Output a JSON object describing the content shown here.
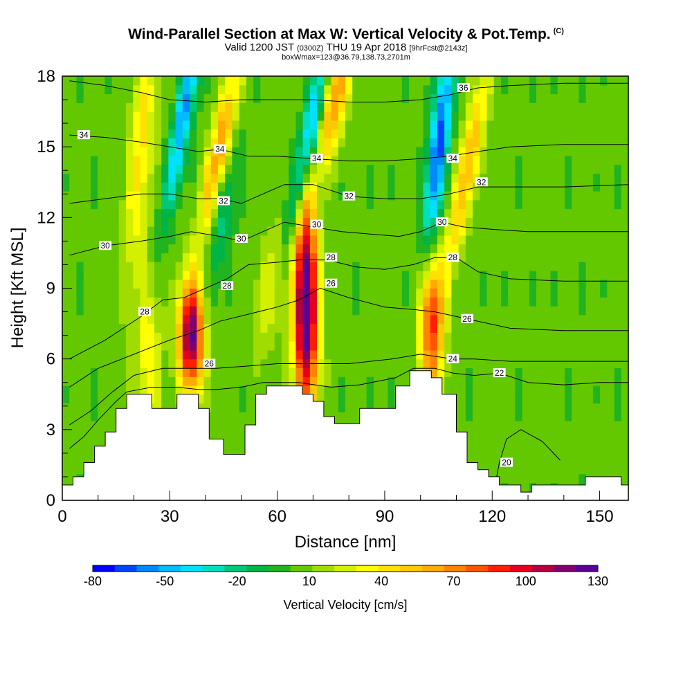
{
  "title": {
    "main": "Wind-Parallel Section at Max W: Vertical Velocity & Pot.Temp.",
    "copyright": "(C)",
    "valid_prefix": "Valid 1200 JST",
    "valid_utc": "(0300Z)",
    "valid_date": "THU 19 Apr 2018",
    "forecast": "[9hrFcst@2143z]",
    "box_info": "boxWmax=123@36.79,138.73,2701m"
  },
  "chart_data": {
    "type": "heatmap",
    "xlabel": "Distance [nm]",
    "ylabel": "Height [Kft MSL]",
    "xlim": [
      0,
      158
    ],
    "ylim": [
      0,
      18
    ],
    "x_ticks": [
      0,
      30,
      60,
      90,
      120,
      150
    ],
    "y_ticks": [
      0,
      3,
      6,
      9,
      12,
      15,
      18
    ],
    "colorbar": {
      "title": "Vertical Velocity [cm/s]",
      "labels": [
        -80,
        -50,
        -20,
        10,
        40,
        70,
        100,
        130
      ],
      "levels": [
        -80,
        -70,
        -60,
        -50,
        -40,
        -30,
        -20,
        -10,
        0,
        10,
        20,
        30,
        40,
        50,
        60,
        70,
        80,
        90,
        100,
        110,
        120,
        130
      ],
      "colors": [
        "#0000ff",
        "#0044ff",
        "#0088ff",
        "#00bbff",
        "#00e0ff",
        "#00e0c0",
        "#00c878",
        "#00b446",
        "#22b41e",
        "#64c800",
        "#a0dc00",
        "#d2f000",
        "#ffff00",
        "#ffe100",
        "#ffc800",
        "#ffaa00",
        "#ff8200",
        "#ff5500",
        "#ff1e00",
        "#e6001e",
        "#b4003c",
        "#82006e",
        "#5a0096"
      ]
    },
    "terrain": [
      [
        0,
        0.65
      ],
      [
        3,
        0.65
      ],
      [
        3,
        1
      ],
      [
        6,
        1
      ],
      [
        6,
        1.6
      ],
      [
        9,
        1.6
      ],
      [
        9,
        2.3
      ],
      [
        12,
        2.3
      ],
      [
        12,
        2.9
      ],
      [
        15,
        2.9
      ],
      [
        15,
        3.9
      ],
      [
        18,
        3.9
      ],
      [
        18,
        4.5
      ],
      [
        25,
        4.5
      ],
      [
        25,
        3.9
      ],
      [
        32,
        3.9
      ],
      [
        32,
        4.5
      ],
      [
        38,
        4.5
      ],
      [
        38,
        3.9
      ],
      [
        41,
        3.9
      ],
      [
        41,
        2.6
      ],
      [
        45,
        2.6
      ],
      [
        45,
        1.95
      ],
      [
        51,
        1.95
      ],
      [
        51,
        3.2
      ],
      [
        54,
        3.2
      ],
      [
        54,
        4.5
      ],
      [
        57,
        4.5
      ],
      [
        57,
        4.85
      ],
      [
        67,
        4.85
      ],
      [
        67,
        4.5
      ],
      [
        70,
        4.5
      ],
      [
        70,
        4.2
      ],
      [
        73,
        4.2
      ],
      [
        73,
        3.55
      ],
      [
        76,
        3.55
      ],
      [
        76,
        3.25
      ],
      [
        83,
        3.25
      ],
      [
        83,
        3.9
      ],
      [
        93,
        3.9
      ],
      [
        93,
        4.85
      ],
      [
        97,
        4.85
      ],
      [
        97,
        5.5
      ],
      [
        103,
        5.5
      ],
      [
        103,
        5.2
      ],
      [
        106,
        5.2
      ],
      [
        106,
        4.5
      ],
      [
        110,
        4.5
      ],
      [
        110,
        2.9
      ],
      [
        113,
        2.9
      ],
      [
        113,
        1.6
      ],
      [
        116,
        1.6
      ],
      [
        116,
        1.3
      ],
      [
        119,
        1.3
      ],
      [
        119,
        1
      ],
      [
        122,
        1
      ],
      [
        122,
        0.65
      ],
      [
        128,
        0.65
      ],
      [
        128,
        0.35
      ],
      [
        131,
        0.35
      ],
      [
        131,
        0.65
      ],
      [
        146,
        0.65
      ],
      [
        146,
        1
      ],
      [
        156,
        1
      ],
      [
        156,
        0.65
      ],
      [
        158,
        0.65
      ]
    ],
    "vertical_velocity_features": [
      {
        "x": 36,
        "y": 7,
        "w": 130,
        "wx": 2.5,
        "wy": 1.7,
        "tilt": 0.03
      },
      {
        "x": 44,
        "y": 15,
        "w": 70,
        "wx": 2,
        "wy": 2.5,
        "tilt": 1.3
      },
      {
        "x": 34,
        "y": 16.5,
        "w": -65,
        "wx": 1.8,
        "wy": 3,
        "tilt": 1.1
      },
      {
        "x": 24,
        "y": 6,
        "w": 35,
        "wx": 2.5,
        "wy": 2.5,
        "tilt": 0
      },
      {
        "x": 68,
        "y": 9,
        "w": 130,
        "wx": 2.2,
        "wy": 3,
        "tilt": 0
      },
      {
        "x": 68,
        "y": 6,
        "w": 40,
        "wx": 2.8,
        "wy": 2.5,
        "tilt": 0
      },
      {
        "x": 76,
        "y": 17,
        "w": 70,
        "wx": 2.5,
        "wy": 2,
        "tilt": 1.2
      },
      {
        "x": 69,
        "y": 15.5,
        "w": -65,
        "wx": 2,
        "wy": 3,
        "tilt": 1.25
      },
      {
        "x": 103,
        "y": 7.5,
        "w": 90,
        "wx": 2.5,
        "wy": 2.2,
        "tilt": 0
      },
      {
        "x": 113,
        "y": 14,
        "w": 60,
        "wx": 2,
        "wy": 3,
        "tilt": 1.2
      },
      {
        "x": 105,
        "y": 15,
        "w": -80,
        "wx": 1.9,
        "wy": 3.5,
        "tilt": 0.7
      },
      {
        "x": 22,
        "y": 15,
        "w": 40,
        "wx": 2.5,
        "wy": 4,
        "tilt": 0.5
      },
      {
        "x": 45,
        "y": 12,
        "w": -25,
        "wx": 2,
        "wy": 2.5,
        "tilt": 0.9
      },
      {
        "x": 58,
        "y": 9,
        "w": 25,
        "wx": 3,
        "wy": 2,
        "tilt": 0.7
      }
    ],
    "theta_contours": [
      {
        "level": 20,
        "label": true,
        "lx": 124,
        "ly": 1.6,
        "pts": [
          [
            120,
            0.2
          ],
          [
            121,
            0.8
          ],
          [
            122,
            1.6
          ],
          [
            124,
            2.6
          ],
          [
            128,
            3.0
          ],
          [
            134,
            2.5
          ],
          [
            139,
            1.7
          ]
        ]
      },
      {
        "level": 22,
        "label": true,
        "lx": 122,
        "ly": 5.4,
        "pts": [
          [
            2,
            2.2
          ],
          [
            6,
            2.7
          ],
          [
            10,
            3.4
          ],
          [
            15,
            4.2
          ],
          [
            18,
            4.6
          ],
          [
            25,
            4.8
          ],
          [
            32,
            4.8
          ],
          [
            38,
            4.7
          ],
          [
            43,
            4.7
          ],
          [
            50,
            4.8
          ],
          [
            56,
            5.0
          ],
          [
            66,
            5.0
          ],
          [
            75,
            4.8
          ],
          [
            83,
            4.9
          ],
          [
            93,
            5.2
          ],
          [
            98,
            5.6
          ],
          [
            104,
            5.6
          ],
          [
            109,
            5.4
          ],
          [
            115,
            5.3
          ],
          [
            122,
            5.4
          ],
          [
            130,
            5.0
          ],
          [
            140,
            4.9
          ],
          [
            150,
            5.0
          ],
          [
            158,
            5.0
          ]
        ]
      },
      {
        "level": 24,
        "label": true,
        "lx": 109,
        "ly": 6.0,
        "pts": [
          [
            2,
            3.2
          ],
          [
            8,
            3.8
          ],
          [
            14,
            4.6
          ],
          [
            20,
            5.3
          ],
          [
            28,
            5.6
          ],
          [
            36,
            5.6
          ],
          [
            43,
            5.6
          ],
          [
            52,
            5.7
          ],
          [
            60,
            5.8
          ],
          [
            70,
            5.8
          ],
          [
            80,
            5.8
          ],
          [
            92,
            6.0
          ],
          [
            100,
            6.2
          ],
          [
            109,
            6.0
          ],
          [
            115,
            6.0
          ],
          [
            125,
            5.9
          ],
          [
            140,
            5.9
          ],
          [
            158,
            5.9
          ]
        ]
      },
      {
        "level": 26,
        "label": true,
        "lx": 113,
        "ly": 7.7,
        "pts": [
          [
            2,
            4.8
          ],
          [
            10,
            5.6
          ],
          [
            20,
            6.2
          ],
          [
            30,
            6.8
          ],
          [
            38,
            7.2
          ],
          [
            44,
            7.6
          ],
          [
            52,
            7.9
          ],
          [
            60,
            8.2
          ],
          [
            66,
            8.5
          ],
          [
            72,
            9.0
          ],
          [
            80,
            8.6
          ],
          [
            90,
            8.2
          ],
          [
            98,
            8.1
          ],
          [
            104,
            8.0
          ],
          [
            110,
            7.8
          ],
          [
            116,
            7.6
          ],
          [
            125,
            7.3
          ],
          [
            140,
            7.2
          ],
          [
            158,
            7.2
          ]
        ]
      },
      {
        "level": 28,
        "label": true,
        "lx": 109,
        "ly": 10.3,
        "pts": [
          [
            2,
            6.0
          ],
          [
            12,
            6.8
          ],
          [
            22,
            7.8
          ],
          [
            28,
            8.5
          ],
          [
            34,
            8.6
          ],
          [
            40,
            9.0
          ],
          [
            46,
            9.4
          ],
          [
            52,
            10.0
          ],
          [
            60,
            10.1
          ],
          [
            66,
            10.2
          ],
          [
            74,
            10.2
          ],
          [
            82,
            9.9
          ],
          [
            90,
            9.8
          ],
          [
            98,
            10.0
          ],
          [
            104,
            10.3
          ],
          [
            110,
            10.3
          ],
          [
            116,
            9.7
          ],
          [
            125,
            9.4
          ],
          [
            140,
            9.3
          ],
          [
            158,
            9.3
          ]
        ]
      },
      {
        "level": 30,
        "label": true,
        "lx": 12,
        "ly": 10.8,
        "pts": [
          [
            2,
            10.4
          ],
          [
            12,
            10.8
          ],
          [
            22,
            11.0
          ],
          [
            30,
            11.2
          ],
          [
            36,
            11.4
          ],
          [
            44,
            11.2
          ],
          [
            50,
            11.0
          ],
          [
            56,
            11.4
          ],
          [
            62,
            11.8
          ],
          [
            70,
            11.6
          ],
          [
            78,
            11.4
          ],
          [
            86,
            11.3
          ],
          [
            94,
            11.2
          ],
          [
            100,
            11.4
          ],
          [
            106,
            11.8
          ],
          [
            112,
            11.6
          ],
          [
            120,
            11.5
          ],
          [
            130,
            11.4
          ],
          [
            145,
            11.4
          ],
          [
            158,
            11.4
          ]
        ]
      },
      {
        "level": 32,
        "label": true,
        "lx": 80,
        "ly": 12.9,
        "pts": [
          [
            2,
            12.6
          ],
          [
            12,
            12.8
          ],
          [
            22,
            13.0
          ],
          [
            30,
            13.0
          ],
          [
            38,
            12.8
          ],
          [
            44,
            12.8
          ],
          [
            50,
            12.6
          ],
          [
            56,
            13.0
          ],
          [
            62,
            13.4
          ],
          [
            70,
            13.4
          ],
          [
            80,
            12.9
          ],
          [
            90,
            12.8
          ],
          [
            100,
            12.8
          ],
          [
            108,
            13.0
          ],
          [
            116,
            13.3
          ],
          [
            125,
            13.3
          ],
          [
            140,
            13.3
          ],
          [
            158,
            13.4
          ]
        ]
      },
      {
        "level": 34,
        "label": true,
        "lx": 44,
        "ly": 14.9,
        "pts": [
          [
            2,
            15.5
          ],
          [
            12,
            15.4
          ],
          [
            22,
            15.2
          ],
          [
            30,
            15.0
          ],
          [
            38,
            14.8
          ],
          [
            44,
            14.9
          ],
          [
            52,
            14.6
          ],
          [
            60,
            14.6
          ],
          [
            70,
            14.5
          ],
          [
            80,
            14.4
          ],
          [
            90,
            14.4
          ],
          [
            100,
            14.5
          ],
          [
            108,
            14.6
          ],
          [
            116,
            14.8
          ],
          [
            125,
            15.0
          ],
          [
            140,
            15.1
          ],
          [
            158,
            15.1
          ]
        ]
      },
      {
        "level": 36,
        "label": true,
        "lx": 112,
        "ly": 17.5,
        "pts": [
          [
            2,
            17.8
          ],
          [
            12,
            17.6
          ],
          [
            22,
            17.3
          ],
          [
            30,
            17.0
          ],
          [
            40,
            16.9
          ],
          [
            50,
            17.0
          ],
          [
            60,
            17.0
          ],
          [
            70,
            17.0
          ],
          [
            80,
            16.9
          ],
          [
            90,
            16.9
          ],
          [
            100,
            17.0
          ],
          [
            108,
            17.2
          ],
          [
            116,
            17.5
          ],
          [
            125,
            17.6
          ],
          [
            140,
            17.7
          ],
          [
            158,
            17.7
          ]
        ]
      }
    ],
    "theta_extra_labels": [
      {
        "level": 34,
        "lx": 6,
        "ly": 15.5
      },
      {
        "level": 34,
        "lx": 71,
        "ly": 14.5
      },
      {
        "level": 34,
        "lx": 109,
        "ly": 14.5
      },
      {
        "level": 32,
        "lx": 45,
        "ly": 12.7
      },
      {
        "level": 32,
        "lx": 117,
        "ly": 13.5
      },
      {
        "level": 30,
        "lx": 50,
        "ly": 11.1
      },
      {
        "level": 30,
        "lx": 71,
        "ly": 11.7
      },
      {
        "level": 30,
        "lx": 106,
        "ly": 11.8
      },
      {
        "level": 28,
        "lx": 23,
        "ly": 8.0
      },
      {
        "level": 28,
        "lx": 46,
        "ly": 9.1
      },
      {
        "level": 28,
        "lx": 75,
        "ly": 10.3
      },
      {
        "level": 26,
        "lx": 41,
        "ly": 5.8
      },
      {
        "level": 26,
        "lx": 75,
        "ly": 9.2
      }
    ]
  }
}
